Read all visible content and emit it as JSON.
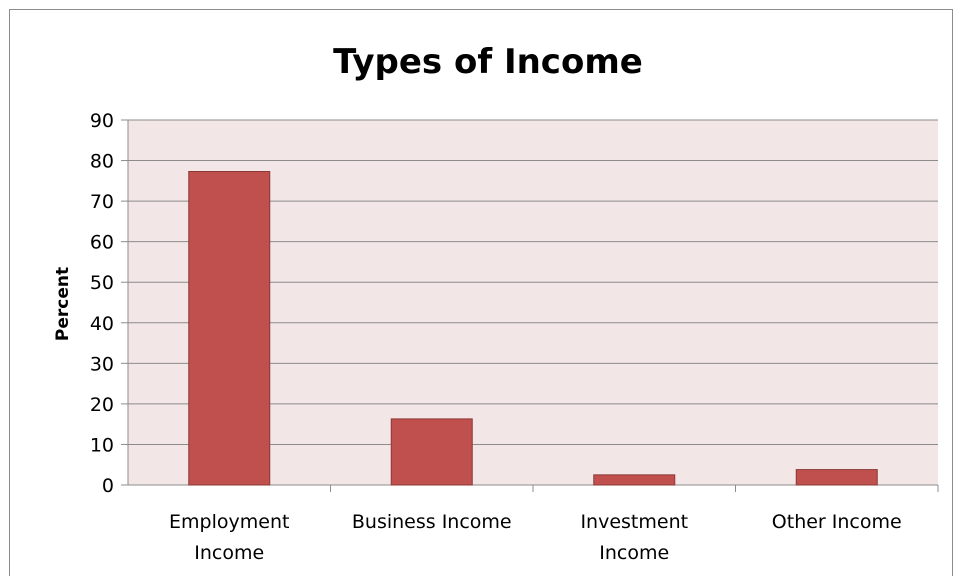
{
  "chart_data": {
    "type": "bar",
    "title": "Types of Income",
    "xlabel": "",
    "ylabel": "Percent",
    "categories": [
      [
        "Employment",
        "Income"
      ],
      [
        "Business Income"
      ],
      [
        "Investment",
        "Income"
      ],
      [
        "Other Income"
      ]
    ],
    "values": [
      77.3,
      16.3,
      2.5,
      3.8
    ],
    "ylim": [
      0,
      90
    ],
    "yticks": [
      "0",
      "10",
      "20",
      "30",
      "40",
      "50",
      "60",
      "70",
      "80",
      "90"
    ],
    "grid": true,
    "legend": "none",
    "colors": {
      "bar_fill": "#c0504d",
      "bar_stroke": "#8c3836",
      "plot_background": "#f2e6e6",
      "gridline": "#8c8c8c"
    }
  }
}
